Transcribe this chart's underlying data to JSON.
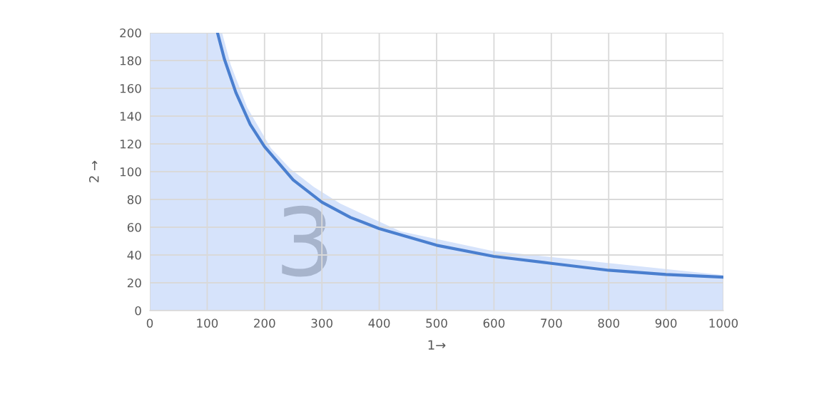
{
  "chart_data": {
    "type": "line",
    "xlabel": "1→",
    "ylabel": "2 →",
    "xlim": [
      0,
      1000
    ],
    "ylim": [
      0,
      200
    ],
    "xticks": [
      0,
      100,
      200,
      300,
      400,
      500,
      600,
      700,
      800,
      900,
      1000
    ],
    "yticks": [
      0,
      20,
      40,
      60,
      80,
      100,
      120,
      140,
      160,
      180,
      200
    ],
    "grid": true,
    "legend": false,
    "marker": "none",
    "line_style": "solid",
    "annotations": [
      "3"
    ],
    "series": [
      {
        "type": "area",
        "color": "#d6e3fb",
        "x": [
          0,
          126,
          141,
          170,
          211,
          245,
          286,
          332,
          437,
          597,
          1000
        ],
        "values": [
          200,
          200,
          177,
          146,
          117,
          102,
          89,
          77,
          57,
          43,
          25.5
        ]
      },
      {
        "color": "#4a7fcf",
        "x": [
          118,
          130,
          150,
          175,
          200,
          250,
          300,
          350,
          400,
          500,
          600,
          700,
          800,
          900,
          1000
        ],
        "values": [
          200,
          181,
          157,
          134,
          118,
          94,
          78,
          67,
          59,
          47,
          39,
          34,
          29,
          26,
          24
        ]
      }
    ]
  }
}
